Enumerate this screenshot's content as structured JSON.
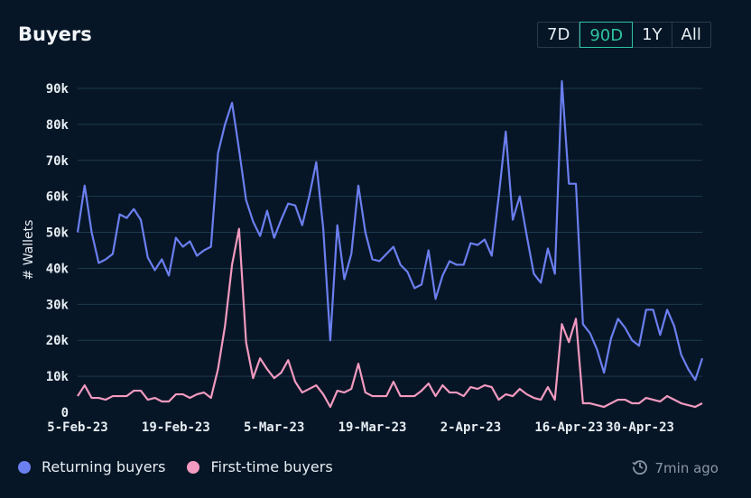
{
  "header": {
    "title": "Buyers"
  },
  "ranges": [
    {
      "label": "7D",
      "active": false
    },
    {
      "label": "90D",
      "active": true
    },
    {
      "label": "1Y",
      "active": false
    },
    {
      "label": "All",
      "active": false
    }
  ],
  "legend": [
    {
      "label": "Returning buyers",
      "color": "#6b7ff0"
    },
    {
      "label": "First-time buyers",
      "color": "#f29ac0"
    }
  ],
  "updated": {
    "text": "7min ago",
    "icon": "history-clock-icon"
  },
  "chart_data": {
    "type": "line",
    "title": "Buyers",
    "ylabel": "# Wallets",
    "xlabel": "",
    "ylim": [
      0,
      90000
    ],
    "yticks": [
      0,
      10000,
      20000,
      30000,
      40000,
      50000,
      60000,
      70000,
      80000,
      90000
    ],
    "ytick_labels": [
      "0",
      "10k",
      "20k",
      "30k",
      "40k",
      "50k",
      "60k",
      "70k",
      "80k",
      "90k"
    ],
    "xticks": [
      0,
      14,
      28,
      42,
      56,
      70,
      84
    ],
    "xtick_labels": [
      "5-Feb-23",
      "19-Feb-23",
      "5-Mar-23",
      "19-Mar-23",
      "2-Apr-23",
      "16-Apr-23",
      "30-Apr-23"
    ],
    "grid": true,
    "legend_position": "bottom-left",
    "series": [
      {
        "name": "Returning buyers",
        "color": "#6b7ff0",
        "values": [
          50000,
          63000,
          50000,
          41500,
          42500,
          44000,
          55000,
          54000,
          56500,
          53500,
          43000,
          39500,
          42500,
          38000,
          48500,
          46000,
          47500,
          43500,
          45000,
          46000,
          72000,
          80000,
          86000,
          73000,
          59000,
          53000,
          49000,
          56000,
          48500,
          53500,
          58000,
          57500,
          52000,
          60000,
          69500,
          51000,
          20000,
          52000,
          37000,
          44000,
          63000,
          50000,
          42500,
          42000,
          44000,
          46000,
          41000,
          39000,
          34500,
          35500,
          45000,
          31500,
          38000,
          42000,
          41000,
          41000,
          47000,
          46500,
          48000,
          43500,
          60000,
          78000,
          53500,
          60000,
          49000,
          38500,
          36000,
          45500,
          38500,
          92000,
          63500,
          63500,
          24500,
          22000,
          17500,
          11000,
          20500,
          26000,
          23500,
          20000,
          18500,
          28500,
          28500,
          21500,
          28500,
          24000,
          16000,
          12000,
          9000,
          15000
        ]
      },
      {
        "name": "First-time buyers",
        "color": "#f29ac0",
        "values": [
          4500,
          7500,
          4000,
          4000,
          3500,
          4500,
          4500,
          4500,
          6000,
          6000,
          3500,
          4000,
          3000,
          3000,
          5000,
          5000,
          4000,
          5000,
          5500,
          4000,
          12000,
          24000,
          41000,
          51000,
          19500,
          9500,
          15000,
          12000,
          9500,
          11000,
          14500,
          8500,
          5500,
          6500,
          7500,
          5000,
          1500,
          6000,
          5500,
          6500,
          13500,
          5500,
          4500,
          4500,
          4500,
          8500,
          4500,
          4500,
          4500,
          6000,
          8000,
          4500,
          7500,
          5500,
          5500,
          4500,
          7000,
          6500,
          7500,
          7000,
          3500,
          5000,
          4500,
          6500,
          5000,
          4000,
          3500,
          7000,
          3500,
          24500,
          19500,
          26000,
          2500,
          2500,
          2000,
          1500,
          2500,
          3500,
          3500,
          2500,
          2500,
          4000,
          3500,
          3000,
          4500,
          3500,
          2500,
          2000,
          1500,
          2500
        ]
      }
    ]
  }
}
